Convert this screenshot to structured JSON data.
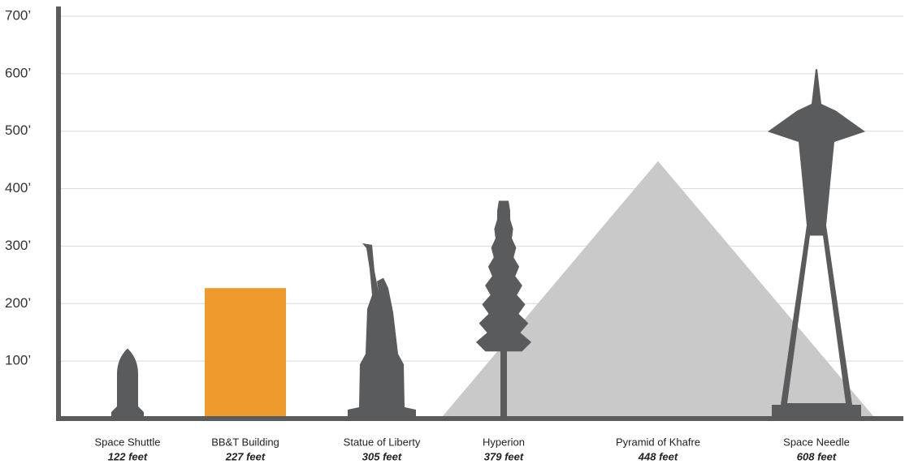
{
  "chart_data": {
    "type": "bar",
    "categories": [
      "Space Shuttle",
      "BB&T Building",
      "Statue of Liberty",
      "Hyperion",
      "Pyramid of Khafre",
      "Space Needle"
    ],
    "values": [
      122,
      227,
      305,
      379,
      448,
      608
    ],
    "value_labels": [
      "122 feet",
      "227 feet",
      "305 feet",
      "379 feet",
      "448 feet",
      "608 feet"
    ],
    "colors": [
      "#5a5b5d",
      "#ef9a2d",
      "#5a5b5d",
      "#5a5b5d",
      "#c9c9c9",
      "#5a5b5d"
    ],
    "ylim": [
      0,
      700
    ],
    "yticks": [
      {
        "value": 100,
        "label": "100’"
      },
      {
        "value": 200,
        "label": "200’"
      },
      {
        "value": 300,
        "label": "300’"
      },
      {
        "value": 400,
        "label": "400’"
      },
      {
        "value": 500,
        "label": "500’"
      },
      {
        "value": 600,
        "label": "600’"
      },
      {
        "value": 700,
        "label": "700’"
      }
    ],
    "grid": true
  }
}
